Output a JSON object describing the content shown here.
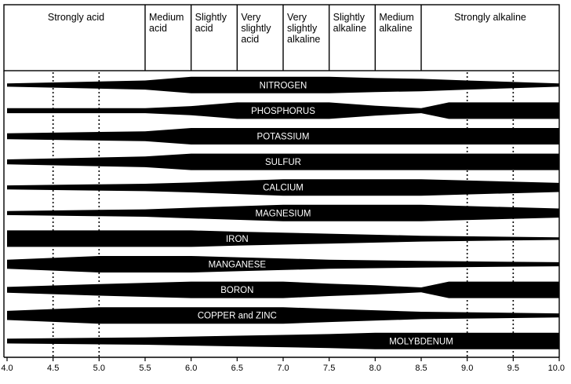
{
  "chart_data": {
    "type": "diagram",
    "x_axis": {
      "min": 4.0,
      "max": 10.0,
      "tick_labels": [
        "4.0",
        "4.5",
        "5.0",
        "5.5",
        "6.0",
        "6.5",
        "7.0",
        "7.5",
        "8.0",
        "8.5",
        "9.0",
        "9.5",
        "10.0"
      ]
    },
    "categories": [
      {
        "label": [
          "Strongly acid"
        ],
        "from": 4.0,
        "to": 5.5
      },
      {
        "label": [
          "Medium",
          "acid"
        ],
        "from": 5.5,
        "to": 6.0
      },
      {
        "label": [
          "Slightly",
          "acid"
        ],
        "from": 6.0,
        "to": 6.5
      },
      {
        "label": [
          "Very",
          "slightly",
          "acid"
        ],
        "from": 6.5,
        "to": 7.0
      },
      {
        "label": [
          "Very",
          "slightly",
          "alkaline"
        ],
        "from": 7.0,
        "to": 7.5
      },
      {
        "label": [
          "Slightly",
          "alkaline"
        ],
        "from": 7.5,
        "to": 8.0
      },
      {
        "label": [
          "Medium",
          "alkaline"
        ],
        "from": 8.0,
        "to": 8.5
      },
      {
        "label": [
          "Strongly alkaline"
        ],
        "from": 8.5,
        "to": 10.0
      }
    ],
    "nutrients": [
      {
        "name": "NITROGEN",
        "label_ph": 7.0,
        "availability": [
          [
            4.0,
            0.2
          ],
          [
            5.5,
            0.55
          ],
          [
            6.0,
            1
          ],
          [
            7.5,
            1
          ],
          [
            8.0,
            0.85
          ],
          [
            8.5,
            0.75
          ],
          [
            9.0,
            0.55
          ],
          [
            10.0,
            0.2
          ]
        ]
      },
      {
        "name": "PHOSPHORUS",
        "label_ph": 7.0,
        "availability": [
          [
            4.0,
            0.3
          ],
          [
            5.5,
            0.3
          ],
          [
            6.0,
            0.55
          ],
          [
            6.5,
            1
          ],
          [
            7.5,
            1
          ],
          [
            8.0,
            0.6
          ],
          [
            8.5,
            0.3
          ],
          [
            8.8,
            1
          ],
          [
            10.0,
            1
          ]
        ]
      },
      {
        "name": "POTASSIUM",
        "label_ph": 7.0,
        "availability": [
          [
            4.0,
            0.35
          ],
          [
            5.5,
            0.6
          ],
          [
            6.0,
            1
          ],
          [
            10.0,
            1
          ]
        ]
      },
      {
        "name": "SULFUR",
        "label_ph": 7.0,
        "availability": [
          [
            4.0,
            0.3
          ],
          [
            5.5,
            0.65
          ],
          [
            6.0,
            1
          ],
          [
            10.0,
            1
          ]
        ]
      },
      {
        "name": "CALCIUM",
        "label_ph": 7.0,
        "availability": [
          [
            4.0,
            0.25
          ],
          [
            5.5,
            0.45
          ],
          [
            6.0,
            0.6
          ],
          [
            7.0,
            1
          ],
          [
            8.5,
            1
          ],
          [
            10.0,
            0.55
          ]
        ]
      },
      {
        "name": "MAGNESIUM",
        "label_ph": 7.0,
        "availability": [
          [
            4.0,
            0.25
          ],
          [
            5.5,
            0.45
          ],
          [
            6.0,
            0.65
          ],
          [
            7.0,
            1
          ],
          [
            8.5,
            1
          ],
          [
            10.0,
            0.55
          ]
        ]
      },
      {
        "name": "IRON",
        "label_ph": 6.5,
        "availability": [
          [
            4.0,
            1
          ],
          [
            6.0,
            1
          ],
          [
            6.5,
            0.85
          ],
          [
            7.5,
            0.6
          ],
          [
            8.5,
            0.35
          ],
          [
            10.0,
            0.15
          ]
        ]
      },
      {
        "name": "MANGANESE",
        "label_ph": 6.5,
        "availability": [
          [
            4.0,
            0.55
          ],
          [
            5.0,
            1
          ],
          [
            6.0,
            1
          ],
          [
            6.5,
            0.85
          ],
          [
            7.5,
            0.55
          ],
          [
            8.5,
            0.4
          ],
          [
            10.0,
            0.25
          ]
        ]
      },
      {
        "name": "BORON",
        "label_ph": 6.5,
        "availability": [
          [
            4.0,
            0.35
          ],
          [
            5.0,
            0.7
          ],
          [
            6.0,
            1
          ],
          [
            7.0,
            1
          ],
          [
            7.5,
            0.75
          ],
          [
            8.0,
            0.55
          ],
          [
            8.5,
            0.3
          ],
          [
            8.8,
            1
          ],
          [
            10.0,
            1
          ]
        ]
      },
      {
        "name": "COPPER and ZINC",
        "label_ph": 6.5,
        "availability": [
          [
            4.0,
            0.55
          ],
          [
            5.0,
            1
          ],
          [
            7.0,
            1
          ],
          [
            7.5,
            0.8
          ],
          [
            8.5,
            0.45
          ],
          [
            10.0,
            0.25
          ]
        ]
      },
      {
        "name": "MOLYBDENUM",
        "label_ph": 8.5,
        "availability": [
          [
            4.0,
            0.3
          ],
          [
            5.5,
            0.45
          ],
          [
            6.5,
            0.65
          ],
          [
            7.5,
            0.85
          ],
          [
            8.0,
            1
          ],
          [
            10.0,
            1
          ]
        ]
      }
    ]
  }
}
